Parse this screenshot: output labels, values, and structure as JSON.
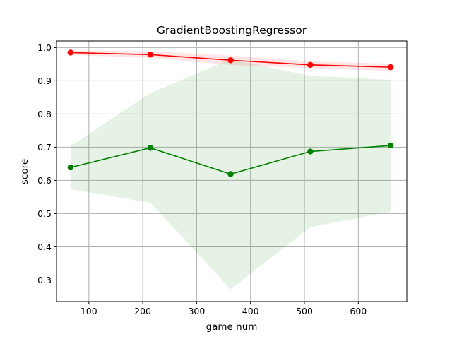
{
  "chart_data": {
    "type": "line",
    "title": "GradientBoostingRegressor",
    "xlabel": "game num",
    "ylabel": "score",
    "xlim": [
      40,
      690
    ],
    "ylim": [
      0.235,
      1.02
    ],
    "xticks": [
      100,
      200,
      300,
      400,
      500,
      600
    ],
    "yticks": [
      0.3,
      0.4,
      0.5,
      0.6,
      0.7,
      0.8,
      0.9,
      1.0
    ],
    "xtick_labels": [
      "100",
      "200",
      "300",
      "400",
      "500",
      "600"
    ],
    "ytick_labels": [
      "0.3",
      "0.4",
      "0.5",
      "0.6",
      "0.7",
      "0.8",
      "0.9",
      "1.0"
    ],
    "grid": true,
    "x": [
      66,
      214,
      363,
      511,
      660
    ],
    "series": [
      {
        "key": "training",
        "color": "#ff0000",
        "values": [
          0.985,
          0.979,
          0.962,
          0.948,
          0.941
        ],
        "band_lower": [
          0.978,
          0.969,
          0.948,
          0.938,
          0.93
        ],
        "band_upper": [
          0.992,
          0.989,
          0.976,
          0.958,
          0.952
        ],
        "band_color": "#ff0000",
        "band_opacity": 0.1
      },
      {
        "key": "cross_validation",
        "color": "#008000",
        "values": [
          0.639,
          0.698,
          0.619,
          0.687,
          0.705
        ],
        "band_lower": [
          0.573,
          0.533,
          0.272,
          0.459,
          0.506
        ],
        "band_upper": [
          0.703,
          0.863,
          0.965,
          0.915,
          0.903
        ],
        "band_color": "#008000",
        "band_opacity": 0.1
      }
    ]
  }
}
